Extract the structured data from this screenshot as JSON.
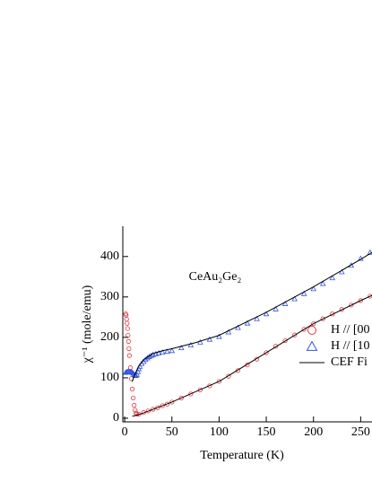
{
  "chart_data": {
    "type": "scatter",
    "annotation": "CeAu₂Ge₂",
    "x_label": "Temperature (K)",
    "y_label": "χ⁻¹ (mole/emu)",
    "xlim": [
      -2,
      262
    ],
    "ylim": [
      -9,
      475
    ],
    "xticks": [
      0,
      50,
      100,
      150,
      200,
      250
    ],
    "yticks": [
      0,
      100,
      200,
      300,
      400
    ],
    "series": [
      {
        "name": "H // [00",
        "color": "#e8343c",
        "marker": "circle",
        "x": [
          1,
          1.5,
          2,
          2.5,
          3,
          3.5,
          4,
          4.5,
          5,
          6,
          7,
          8,
          9,
          10,
          11,
          12,
          13,
          15,
          20,
          25,
          30,
          35,
          40,
          45,
          50,
          60,
          70,
          80,
          90,
          100,
          110,
          120,
          130,
          140,
          150,
          160,
          170,
          180,
          190,
          200,
          210,
          220,
          230,
          240,
          250,
          260
        ],
        "values": [
          258,
          255,
          245,
          235,
          222,
          205,
          190,
          172,
          155,
          125,
          98,
          72,
          50,
          32,
          20,
          13,
          10,
          10,
          14,
          18,
          22,
          26,
          31,
          35,
          40,
          50,
          60,
          70,
          80,
          91,
          104,
          118,
          132,
          146,
          162,
          178,
          192,
          206,
          220,
          234,
          246,
          258,
          269,
          280,
          291,
          302
        ]
      },
      {
        "name": "H // [10",
        "color": "#3355dd",
        "marker": "triangle",
        "x": [
          1,
          2,
          3,
          4,
          5,
          6,
          7,
          8,
          9,
          10,
          11,
          12,
          13,
          14,
          15,
          16,
          18,
          20,
          22,
          24,
          26,
          28,
          30,
          33,
          36,
          40,
          45,
          50,
          60,
          70,
          80,
          90,
          100,
          110,
          120,
          130,
          140,
          150,
          160,
          170,
          180,
          190,
          200,
          210,
          220,
          230,
          240,
          250,
          260
        ],
        "values": [
          113,
          114,
          115,
          116,
          115,
          115,
          114,
          113,
          111,
          108,
          106,
          105,
          108,
          115,
          122,
          128,
          135,
          140,
          145,
          149,
          152,
          155,
          157,
          159,
          161,
          163,
          165,
          167,
          174,
          181,
          188,
          195,
          202,
          213,
          224,
          235,
          246,
          258,
          270,
          283,
          295,
          308,
          320,
          333,
          347,
          362,
          378,
          395,
          410
        ]
      },
      {
        "name": "CEF Fi",
        "color": "#000000",
        "marker": "line",
        "x": [
          8,
          10,
          15,
          20,
          30,
          40,
          50,
          75,
          100,
          150,
          200,
          250,
          262
        ],
        "values": [
          90,
          105,
          130,
          145,
          160,
          167,
          172,
          187,
          205,
          262,
          325,
          393,
          410
        ]
      },
      {
        "name": null,
        "color": "#000000",
        "marker": "line",
        "x": [
          8,
          10,
          15,
          20,
          30,
          50,
          100,
          150,
          200,
          250,
          262
        ],
        "values": [
          5,
          6,
          9,
          13,
          22,
          40,
          91,
          162,
          234,
          291,
          304
        ]
      }
    ]
  }
}
